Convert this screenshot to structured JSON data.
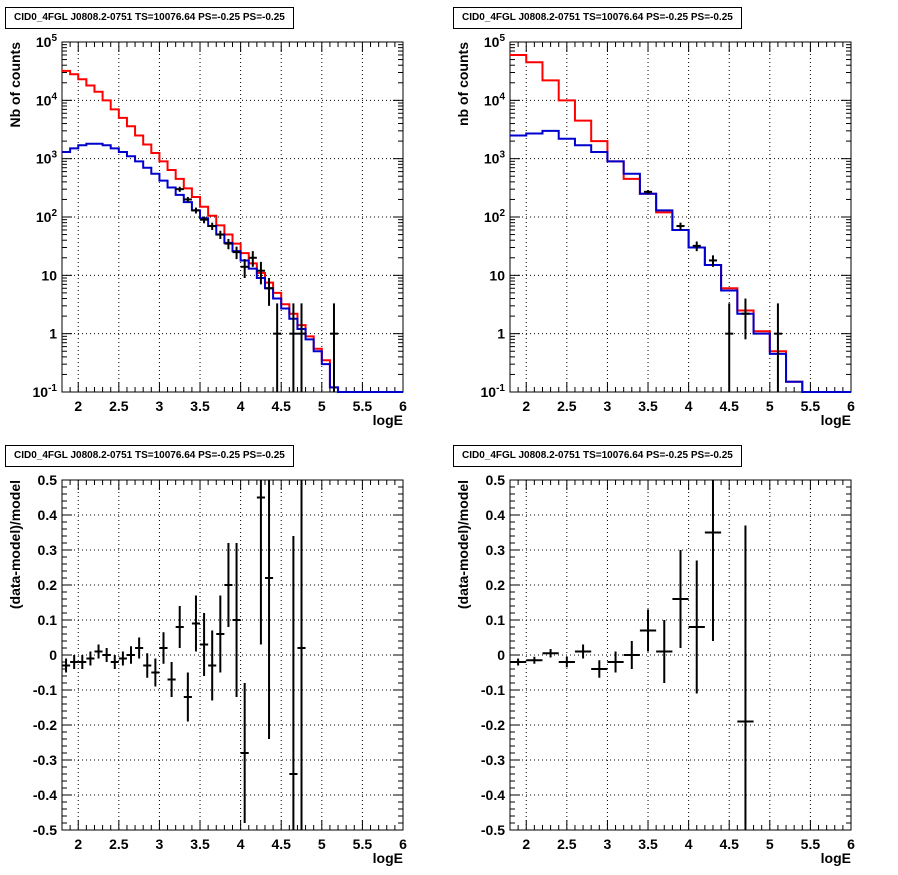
{
  "chart_data": [
    {
      "type": "line",
      "panel": "top-left",
      "title": "CID0_4FGL J0808.2-0751 TS=10076.64 PS=-0.25 PS=-0.25",
      "xlabel": "logE",
      "ylabel": "Nb of counts",
      "xlim": [
        1.8,
        6.0
      ],
      "ylim": [
        0.1,
        100000
      ],
      "yscale": "log",
      "grid": true,
      "x_ticks": [
        "2",
        "2.5",
        "3",
        "3.5",
        "4",
        "4.5",
        "5",
        "5.5",
        "6"
      ],
      "y_ticks": [
        "10^-1",
        "1",
        "10",
        "10^2",
        "10^3",
        "10^4",
        "10^5"
      ],
      "series": [
        {
          "color": "#ff0000",
          "bin_width": 0.1,
          "x": [
            1.85,
            1.95,
            2.05,
            2.15,
            2.25,
            2.35,
            2.45,
            2.55,
            2.65,
            2.75,
            2.85,
            2.95,
            3.05,
            3.15,
            3.25,
            3.35,
            3.45,
            3.55,
            3.65,
            3.75,
            3.85,
            3.95,
            4.05,
            4.15,
            4.25,
            4.35,
            4.45,
            4.55,
            4.65,
            4.75,
            4.85,
            4.95,
            5.05,
            5.15,
            5.25,
            5.35,
            5.45,
            5.55,
            5.65,
            5.75,
            5.85,
            5.95
          ],
          "y": [
            32000,
            28000,
            23000,
            18000,
            14000,
            10000,
            7000,
            5000,
            3600,
            2500,
            1750,
            1250,
            900,
            640,
            450,
            310,
            220,
            150,
            105,
            72,
            50,
            35,
            24,
            16,
            11,
            7.5,
            5,
            3.2,
            2.2,
            1.4,
            0.9,
            0.55,
            0.35,
            0.12,
            0.1,
            0.1,
            0.1,
            0.1,
            0.1,
            0.1,
            0.1,
            0.1
          ]
        },
        {
          "color": "#0000cc",
          "bin_width": 0.1,
          "x": [
            1.85,
            1.95,
            2.05,
            2.15,
            2.25,
            2.35,
            2.45,
            2.55,
            2.65,
            2.75,
            2.85,
            2.95,
            3.05,
            3.15,
            3.25,
            3.35,
            3.45,
            3.55,
            3.65,
            3.75,
            3.85,
            3.95,
            4.05,
            4.15,
            4.25,
            4.35,
            4.45,
            4.55,
            4.65,
            4.75,
            4.85,
            4.95,
            5.05,
            5.15,
            5.25,
            5.35,
            5.45,
            5.55,
            5.65,
            5.75,
            5.85,
            5.95
          ],
          "y": [
            1300,
            1500,
            1700,
            1800,
            1800,
            1700,
            1500,
            1300,
            1100,
            900,
            700,
            550,
            420,
            320,
            240,
            180,
            130,
            95,
            70,
            50,
            36,
            26,
            18,
            13,
            9,
            6,
            4,
            2.7,
            1.8,
            1.2,
            0.8,
            0.5,
            0.3,
            0.12,
            0.1,
            0.1,
            0.1,
            0.1,
            0.1,
            0.1,
            0.1,
            0.1
          ]
        },
        {
          "type": "errorbar",
          "color": "#000000",
          "x": [
            3.25,
            3.35,
            3.45,
            3.55,
            3.65,
            3.75,
            3.85,
            3.95,
            4.05,
            4.15,
            4.25,
            4.35,
            4.45,
            4.65,
            4.75,
            5.15
          ],
          "y": [
            300,
            200,
            130,
            90,
            70,
            50,
            35,
            25,
            14,
            20,
            12,
            6,
            1,
            1,
            1,
            1
          ],
          "ylo": [
            270,
            180,
            115,
            78,
            60,
            42,
            28,
            19,
            9,
            14,
            7,
            3,
            0.1,
            0.1,
            0.1,
            0.1
          ],
          "yhi": [
            330,
            220,
            145,
            102,
            80,
            58,
            42,
            31,
            19,
            26,
            17,
            9,
            3.3,
            3.3,
            3.3,
            3.3
          ]
        }
      ]
    },
    {
      "type": "line",
      "panel": "top-right",
      "title": "CID0_4FGL J0808.2-0751 TS=10076.64 PS=-0.25 PS=-0.25",
      "xlabel": "logE",
      "ylabel": "nb of counts",
      "xlim": [
        1.8,
        6.0
      ],
      "ylim": [
        0.1,
        100000
      ],
      "yscale": "log",
      "grid": true,
      "x_ticks": [
        "2",
        "2.5",
        "3",
        "3.5",
        "4",
        "4.5",
        "5",
        "5.5",
        "6"
      ],
      "y_ticks": [
        "10^-1",
        "1",
        "10",
        "10^2",
        "10^3",
        "10^4",
        "10^5"
      ],
      "series": [
        {
          "color": "#ff0000",
          "bin_width": 0.2,
          "x": [
            1.9,
            2.1,
            2.3,
            2.5,
            2.7,
            2.9,
            3.1,
            3.3,
            3.5,
            3.7,
            3.9,
            4.1,
            4.3,
            4.5,
            4.7,
            4.9,
            5.1,
            5.3,
            5.5,
            5.7,
            5.9
          ],
          "y": [
            60000,
            45000,
            22000,
            10000,
            4500,
            2000,
            900,
            450,
            250,
            120,
            60,
            30,
            15,
            6,
            2.5,
            1.1,
            0.5,
            0.15,
            0.1,
            0.1,
            0.1
          ]
        },
        {
          "color": "#0000cc",
          "bin_width": 0.2,
          "x": [
            1.9,
            2.1,
            2.3,
            2.5,
            2.7,
            2.9,
            3.1,
            3.3,
            3.5,
            3.7,
            3.9,
            4.1,
            4.3,
            4.5,
            4.7,
            4.9,
            5.1,
            5.3,
            5.5,
            5.7,
            5.9
          ],
          "y": [
            2500,
            2700,
            3000,
            2200,
            1700,
            1300,
            900,
            550,
            250,
            130,
            60,
            30,
            15,
            5.5,
            2.2,
            1.0,
            0.45,
            0.15,
            0.1,
            0.1,
            0.1
          ]
        },
        {
          "type": "errorbar",
          "color": "#000000",
          "x": [
            3.5,
            3.9,
            4.1,
            4.3,
            4.5,
            4.7,
            5.1
          ],
          "y": [
            270,
            70,
            32,
            18,
            1,
            2.2,
            1
          ],
          "ylo": [
            250,
            60,
            26,
            14,
            0.1,
            0.8,
            0.1
          ],
          "yhi": [
            290,
            80,
            38,
            22,
            3.3,
            4,
            3.3
          ]
        }
      ]
    },
    {
      "type": "scatter",
      "panel": "bottom-left",
      "title": "CID0_4FGL J0808.2-0751 TS=10076.64 PS=-0.25 PS=-0.25",
      "xlabel": "logE",
      "ylabel": "(data-model)/model",
      "xlim": [
        1.8,
        6.0
      ],
      "ylim": [
        -0.5,
        0.5
      ],
      "grid": true,
      "x_ticks": [
        "2",
        "2.5",
        "3",
        "3.5",
        "4",
        "4.5",
        "5",
        "5.5",
        "6"
      ],
      "y_ticks": [
        "-0.5",
        "-0.4",
        "-0.3",
        "-0.2",
        "-0.1",
        "0",
        "0.1",
        "0.2",
        "0.3",
        "0.4",
        "0.5"
      ],
      "series": [
        {
          "type": "errorbar",
          "color": "#000000",
          "xerr": 0.05,
          "x": [
            1.85,
            1.95,
            2.05,
            2.15,
            2.25,
            2.35,
            2.45,
            2.55,
            2.65,
            2.75,
            2.85,
            2.95,
            3.05,
            3.15,
            3.25,
            3.35,
            3.45,
            3.55,
            3.65,
            3.75,
            3.85,
            3.95,
            4.05,
            4.25,
            4.35,
            4.65,
            4.75
          ],
          "y": [
            -0.03,
            -0.02,
            -0.02,
            -0.01,
            0.01,
            0.0,
            -0.02,
            -0.01,
            0.0,
            0.02,
            -0.03,
            -0.05,
            0.02,
            -0.07,
            0.08,
            -0.12,
            0.09,
            0.03,
            -0.03,
            0.06,
            0.2,
            0.1,
            -0.28,
            0.45,
            0.22,
            -0.34,
            0.02
          ],
          "yerr": [
            0.02,
            0.02,
            0.02,
            0.02,
            0.02,
            0.02,
            0.02,
            0.02,
            0.025,
            0.03,
            0.035,
            0.04,
            0.045,
            0.05,
            0.06,
            0.07,
            0.08,
            0.09,
            0.1,
            0.11,
            0.12,
            0.22,
            0.2,
            0.42,
            0.46,
            0.68,
            0.6
          ]
        }
      ]
    },
    {
      "type": "scatter",
      "panel": "bottom-right",
      "title": "CID0_4FGL J0808.2-0751 TS=10076.64 PS=-0.25 PS=-0.25",
      "xlabel": "logE",
      "ylabel": "(data-model)/model",
      "xlim": [
        1.8,
        6.0
      ],
      "ylim": [
        -0.5,
        0.5
      ],
      "grid": true,
      "x_ticks": [
        "2",
        "2.5",
        "3",
        "3.5",
        "4",
        "4.5",
        "5",
        "5.5",
        "6"
      ],
      "y_ticks": [
        "-0.5",
        "-0.4",
        "-0.3",
        "-0.2",
        "-0.1",
        "0",
        "0.1",
        "0.2",
        "0.3",
        "0.4",
        "0.5"
      ],
      "series": [
        {
          "type": "errorbar",
          "color": "#000000",
          "xerr": 0.1,
          "x": [
            1.9,
            2.1,
            2.3,
            2.5,
            2.7,
            2.9,
            3.1,
            3.3,
            3.5,
            3.7,
            3.9,
            4.1,
            4.3,
            4.7
          ],
          "y": [
            -0.02,
            -0.015,
            0.005,
            -0.02,
            0.01,
            -0.04,
            -0.02,
            0.0,
            0.07,
            0.01,
            0.16,
            0.08,
            0.35,
            -0.19
          ],
          "yerr": [
            0.01,
            0.01,
            0.012,
            0.015,
            0.02,
            0.025,
            0.03,
            0.04,
            0.06,
            0.09,
            0.14,
            0.19,
            0.31,
            0.56
          ]
        }
      ]
    }
  ]
}
